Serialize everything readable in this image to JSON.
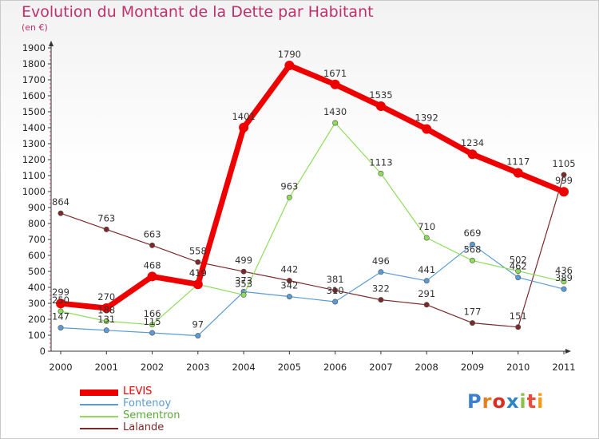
{
  "header": {
    "title": "Evolution du Montant de la Dette par Habitant",
    "subtitle": "(en €)"
  },
  "logo": {
    "text": "Proxiti",
    "colors": [
      "#3a7fd0",
      "#e67e22",
      "#d93025",
      "#2e86c1",
      "#8bc34a",
      "#e74c3c",
      "#f39c12"
    ]
  },
  "chart_data": {
    "type": "line",
    "title": "Evolution du Montant de la Dette par Habitant",
    "subtitle": "(en €)",
    "x": [
      "2000",
      "2001",
      "2002",
      "2003",
      "2004",
      "2005",
      "2006",
      "2007",
      "2008",
      "2009",
      "2010",
      "2011"
    ],
    "ylim": [
      0,
      1900
    ],
    "yticks": [
      0,
      100,
      200,
      300,
      400,
      500,
      600,
      700,
      800,
      900,
      1000,
      1100,
      1200,
      1300,
      1400,
      1500,
      1600,
      1700,
      1800,
      1900
    ],
    "grid": false,
    "legend_position": "bottom-left",
    "series": [
      {
        "name": "LEVIS",
        "color": "#ee0000",
        "values": [
          299,
          270,
          468,
          419,
          1401,
          1790,
          1671,
          1535,
          1392,
          1234,
          1117,
          999
        ]
      },
      {
        "name": "Fontenoy",
        "color": "#5b9bd5",
        "values": [
          147,
          131,
          115,
          97,
          373,
          342,
          310,
          496,
          441,
          669,
          462,
          389
        ]
      },
      {
        "name": "Sementron",
        "color": "#8fdc5a",
        "values": [
          250,
          188,
          166,
          419,
          353,
          963,
          1430,
          1113,
          710,
          568,
          502,
          436
        ]
      },
      {
        "name": "Lalande",
        "color": "#7b2a2a",
        "values": [
          864,
          763,
          663,
          558,
          499,
          442,
          381,
          322,
          291,
          177,
          151,
          1105
        ]
      }
    ]
  }
}
